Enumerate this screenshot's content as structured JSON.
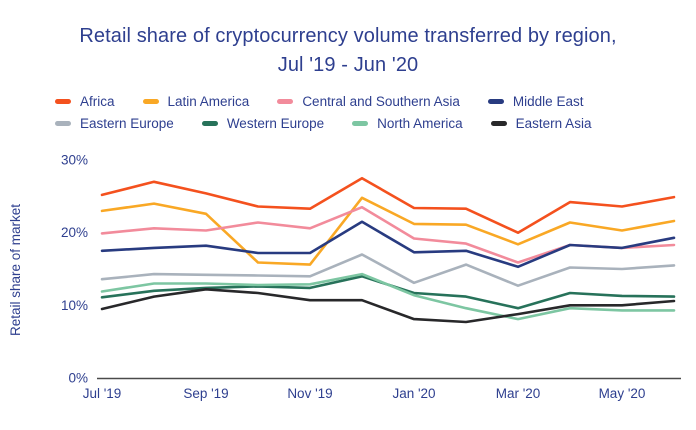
{
  "title": {
    "line1": "Retail share of cryptocurrency volume transferred by region,",
    "line2": "Jul '19 - Jun '20"
  },
  "chart_data": {
    "type": "line",
    "title": "Retail share of cryptocurrency volume transferred by region, Jul '19 - Jun '20",
    "xlabel": "",
    "ylabel": "Retail share of market",
    "x": [
      "Jul '19",
      "Aug '19",
      "Sep '19",
      "Oct '19",
      "Nov '19",
      "Dec '19",
      "Jan '20",
      "Feb '20",
      "Mar '20",
      "Apr '20",
      "May '20",
      "Jun '20"
    ],
    "x_tick_labels": [
      "Jul '19",
      "Sep '19",
      "Nov '19",
      "Jan '20",
      "Mar '20",
      "May '20"
    ],
    "y_ticks": [
      {
        "label": "0%",
        "value": 0
      },
      {
        "label": "10%",
        "value": 10
      },
      {
        "label": "20%",
        "value": 20
      },
      {
        "label": "30%",
        "value": 30
      }
    ],
    "ylim": [
      0,
      30
    ],
    "unit": "%",
    "grid": false,
    "legend_position": "top",
    "series": [
      {
        "name": "Africa",
        "color": "#f4511e",
        "values": [
          25.2,
          27.0,
          25.4,
          23.6,
          23.3,
          27.5,
          23.4,
          23.3,
          20.0,
          24.2,
          23.6,
          24.9
        ]
      },
      {
        "name": "Latin America",
        "color": "#f9a825",
        "values": [
          23.0,
          24.0,
          22.6,
          15.9,
          15.6,
          24.8,
          21.2,
          21.1,
          18.4,
          21.4,
          20.3,
          21.6
        ]
      },
      {
        "name": "Central and Southern Asia",
        "color": "#f28b9b",
        "values": [
          19.9,
          20.6,
          20.3,
          21.4,
          20.6,
          23.5,
          19.2,
          18.5,
          15.9,
          18.3,
          17.9,
          18.3
        ]
      },
      {
        "name": "Middle East",
        "color": "#283b80",
        "values": [
          17.5,
          17.9,
          18.2,
          17.2,
          17.2,
          21.5,
          17.3,
          17.5,
          15.3,
          18.3,
          17.9,
          19.3
        ]
      },
      {
        "name": "Eastern Europe",
        "color": "#a9b2bc",
        "values": [
          13.6,
          14.3,
          14.2,
          14.1,
          14.0,
          17.0,
          13.1,
          15.6,
          12.7,
          15.2,
          15.0,
          15.5
        ]
      },
      {
        "name": "Western Europe",
        "color": "#27725a",
        "values": [
          11.1,
          12.0,
          12.4,
          12.6,
          12.4,
          14.0,
          11.7,
          11.2,
          9.6,
          11.7,
          11.3,
          11.2
        ]
      },
      {
        "name": "North America",
        "color": "#7dc6a2",
        "values": [
          11.9,
          13.0,
          13.0,
          12.8,
          12.9,
          14.3,
          11.4,
          9.6,
          8.1,
          9.6,
          9.3,
          9.3
        ]
      },
      {
        "name": "Eastern Asia",
        "color": "#28282a",
        "values": [
          9.5,
          11.2,
          12.2,
          11.7,
          10.7,
          10.7,
          8.1,
          7.7,
          8.8,
          10.0,
          10.0,
          10.6
        ]
      }
    ],
    "axis_color": "#4a4a4a",
    "text_color": "#2e3f8f"
  }
}
